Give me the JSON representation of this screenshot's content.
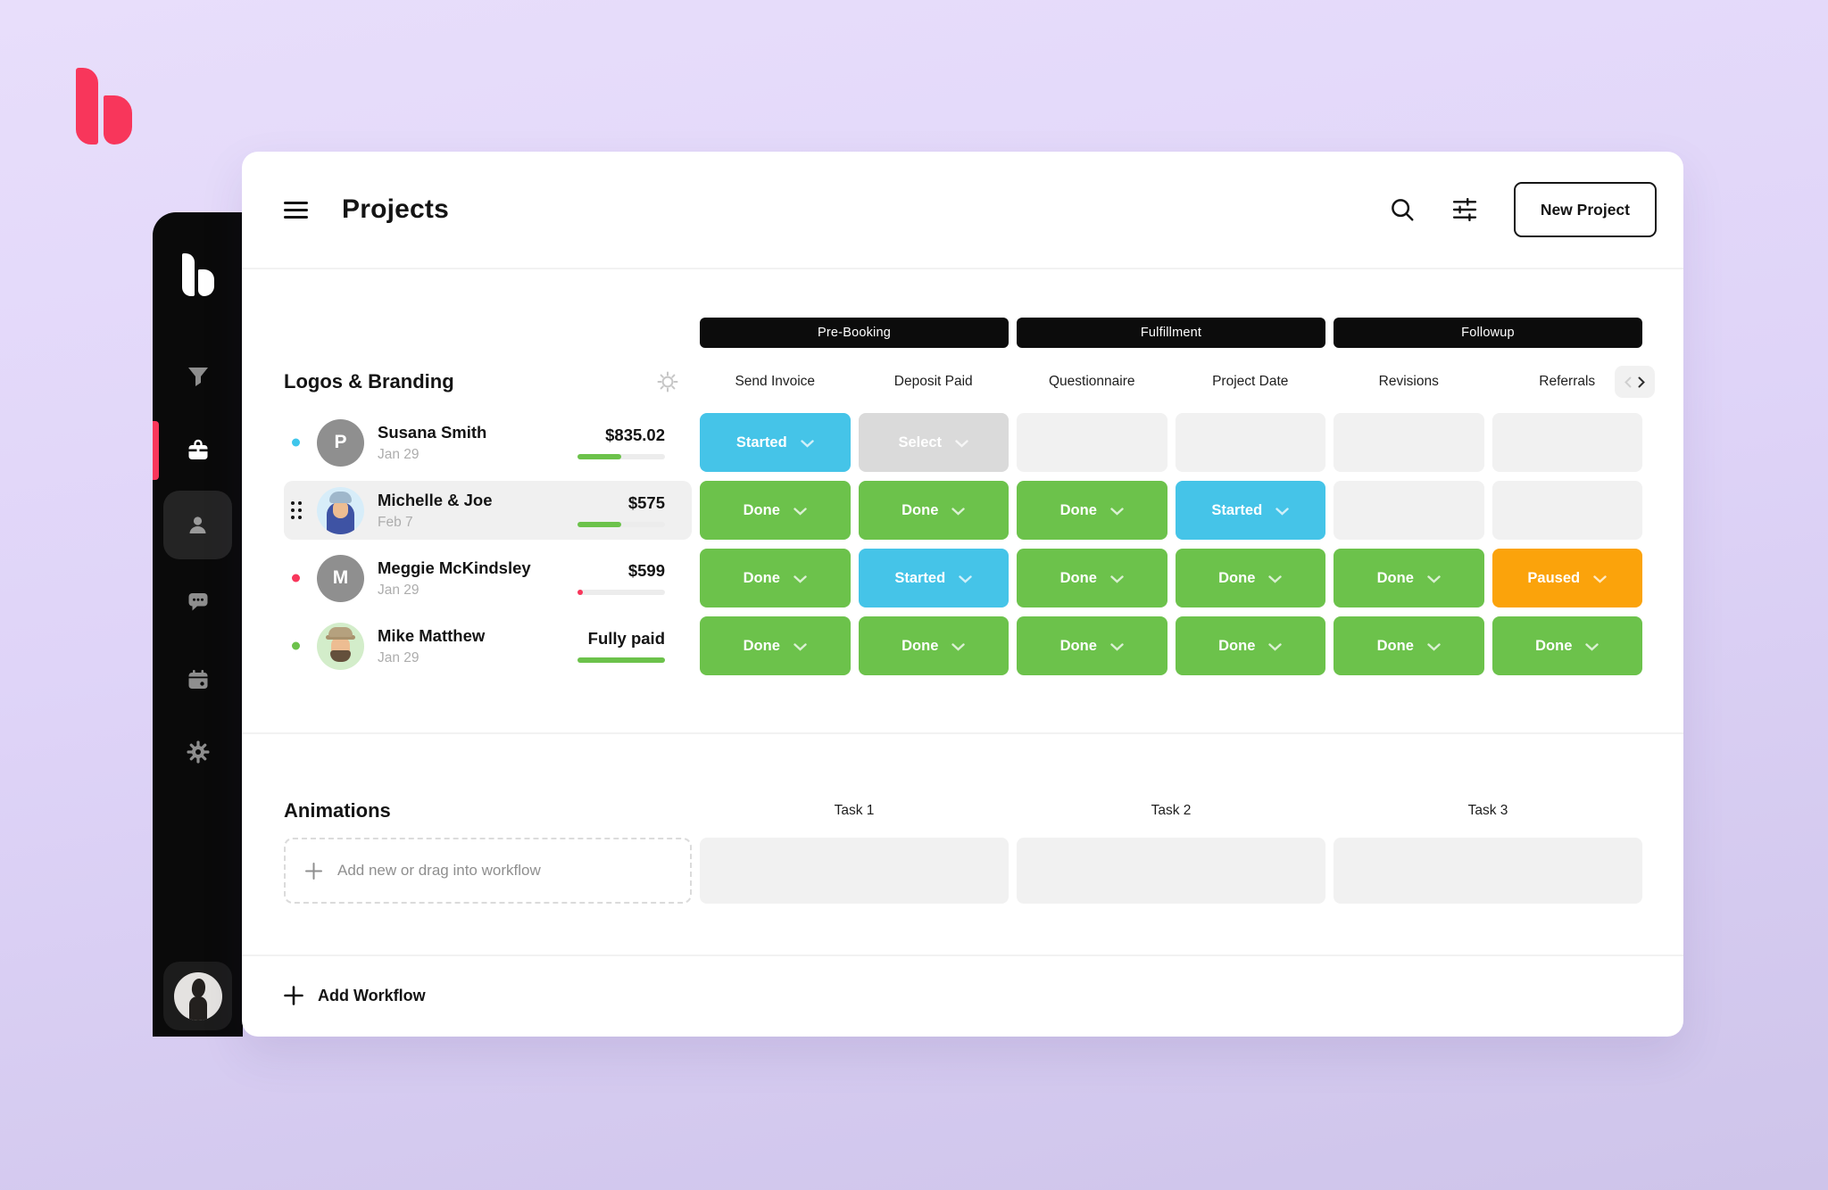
{
  "header": {
    "title": "Projects",
    "new_project_label": "New Project",
    "icons": [
      "menu-icon",
      "search-icon",
      "filter-sliders-icon"
    ]
  },
  "sidebar": {
    "icons": [
      "brand-logo",
      "filter-icon",
      "briefcase-icon",
      "person-icon",
      "chat-icon",
      "calendar-icon",
      "gear-icon",
      "user-avatar"
    ],
    "active_item": "projects"
  },
  "workflow": {
    "title": "Logos & Branding",
    "stage_groups": [
      "Pre-Booking",
      "Fulfillment",
      "Followup"
    ],
    "columns": [
      "Send Invoice",
      "Deposit Paid",
      "Questionnaire",
      "Project Date",
      "Revisions",
      "Referrals"
    ],
    "rows": [
      {
        "name": "Susana Smith",
        "date": "Jan 29",
        "amount": "$835.02",
        "dot": "blue",
        "avatar_initial": "P",
        "progress": {
          "percent": 50,
          "color": "green"
        },
        "statuses": [
          {
            "label": "Started",
            "type": "started"
          },
          {
            "label": "Select",
            "type": "select"
          },
          null,
          null,
          null,
          null
        ]
      },
      {
        "name": "Michelle & Joe",
        "date": "Feb 7",
        "amount": "$575",
        "dot": "none",
        "progress": {
          "percent": 50,
          "color": "green"
        },
        "statuses": [
          {
            "label": "Done",
            "type": "done"
          },
          {
            "label": "Done",
            "type": "done"
          },
          {
            "label": "Done",
            "type": "done"
          },
          {
            "label": "Started",
            "type": "started"
          },
          null,
          null
        ]
      },
      {
        "name": "Meggie McKindsley",
        "date": "Jan 29",
        "amount": "$599",
        "dot": "pink",
        "avatar_initial": "M",
        "progress": {
          "percent": 6,
          "color": "pink"
        },
        "statuses": [
          {
            "label": "Done",
            "type": "done"
          },
          {
            "label": "Started",
            "type": "started"
          },
          {
            "label": "Done",
            "type": "done"
          },
          {
            "label": "Done",
            "type": "done"
          },
          {
            "label": "Done",
            "type": "done"
          },
          {
            "label": "Paused",
            "type": "paused"
          }
        ]
      },
      {
        "name": "Mike Matthew",
        "date": "Jan 29",
        "amount": "Fully paid",
        "dot": "green",
        "progress": {
          "percent": 100,
          "color": "green"
        },
        "statuses": [
          {
            "label": "Done",
            "type": "done"
          },
          {
            "label": "Done",
            "type": "done"
          },
          {
            "label": "Done",
            "type": "done"
          },
          {
            "label": "Done",
            "type": "done"
          },
          {
            "label": "Done",
            "type": "done"
          },
          {
            "label": "Done",
            "type": "done"
          }
        ]
      }
    ]
  },
  "animations": {
    "title": "Animations",
    "task_columns": [
      "Task 1",
      "Task 2",
      "Task 3"
    ],
    "add_placeholder": "Add new or drag into workflow"
  },
  "footer": {
    "add_workflow_label": "Add Workflow"
  },
  "colors": {
    "accent_pink": "#F8365B",
    "status_started": "#45C4E8",
    "status_done": "#6CC24B",
    "status_paused": "#FBA30B",
    "status_select": "#DADADA",
    "empty_cell": "#F1F1F1",
    "sidebar_bg": "#0A0A0A",
    "background": "#DFD4F8"
  }
}
